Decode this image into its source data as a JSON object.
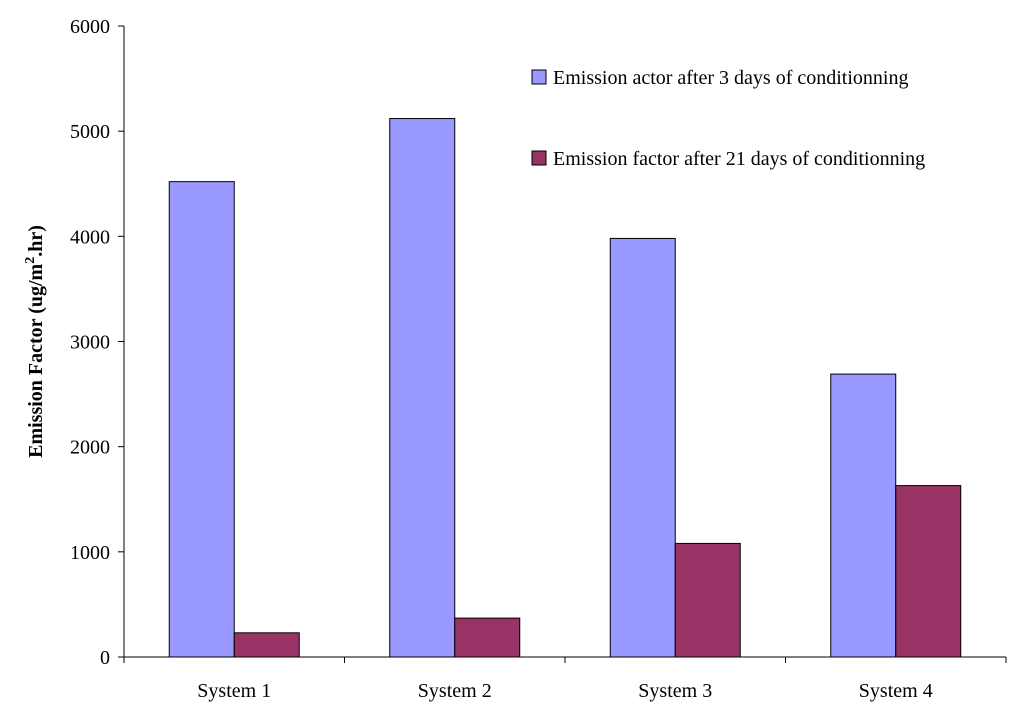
{
  "chart_data": {
    "type": "bar",
    "title": "",
    "xlabel": "",
    "ylabel": {
      "prefix": "Emission Factor (ug/m",
      "superscript": "2",
      "suffix": ".hr)"
    },
    "categories": [
      "System 1",
      "System 2",
      "System 3",
      "System 4"
    ],
    "series": [
      {
        "name": "Emission actor after 3 days of conditionning",
        "color": "#9999ff",
        "values": [
          4520,
          5120,
          3980,
          2690
        ]
      },
      {
        "name": "Emission factor after 21 days of conditionning",
        "color": "#993366",
        "values": [
          230,
          370,
          1080,
          1630
        ]
      }
    ],
    "ylim": [
      0,
      6000
    ],
    "yticks": [
      0,
      1000,
      2000,
      3000,
      4000,
      5000,
      6000
    ],
    "grid": false,
    "legend_position": "top-right"
  }
}
